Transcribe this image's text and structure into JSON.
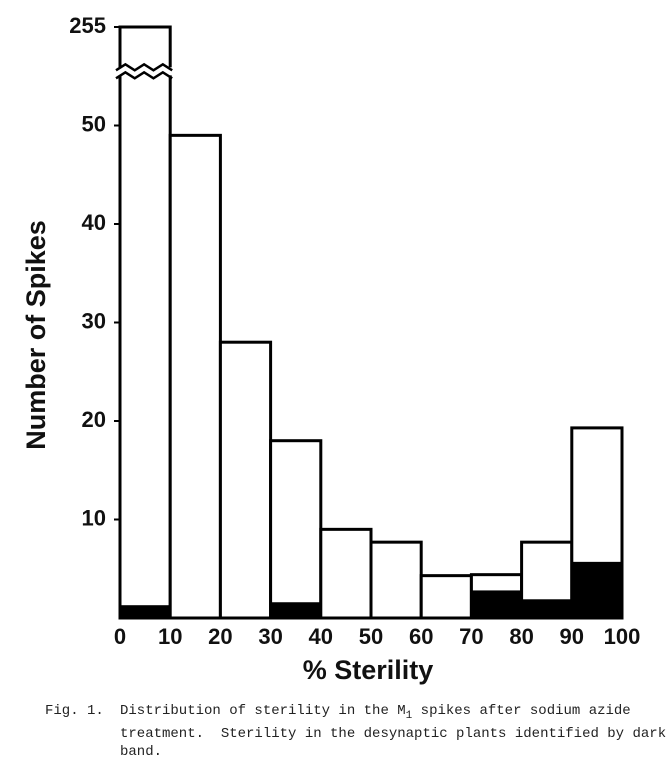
{
  "chart_data": {
    "type": "histogram",
    "bins": [
      0,
      10,
      20,
      30,
      40,
      50,
      60,
      70,
      80,
      90,
      100
    ],
    "values": [
      255,
      49,
      28,
      18,
      9,
      7.7,
      4.3,
      4.4,
      7.7,
      19.3
    ],
    "dark_band": [
      1.3,
      0,
      0,
      1.6,
      0,
      0,
      0,
      2.8,
      1.9,
      5.7
    ],
    "color": "#ffffff",
    "dark_color": "#000000",
    "xlabel": "% Sterility",
    "ylabel": "Number of Spikes",
    "xlim": [
      0,
      100
    ],
    "xticks": [
      0,
      10,
      20,
      30,
      40,
      50,
      60,
      70,
      80,
      90,
      100
    ],
    "ylim": [
      0,
      60
    ],
    "yticks": [
      10,
      20,
      30,
      40,
      50,
      255
    ],
    "axis_break": 55.5,
    "grid": false
  },
  "caption": {
    "label": "Fig. 1.",
    "parts": [
      "Distribution of sterility in the M",
      "1",
      " spikes after sodium azide treatment.  Sterility in the desynaptic plants identified by dark band."
    ]
  }
}
